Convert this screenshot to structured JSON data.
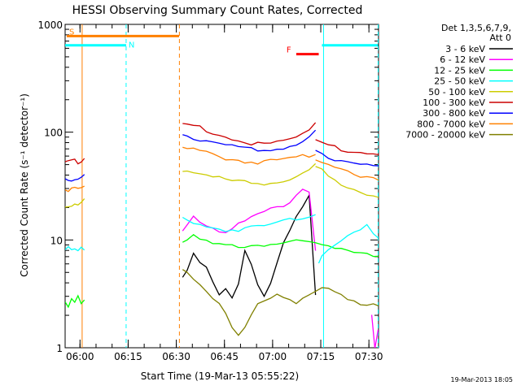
{
  "chart_data": {
    "type": "line",
    "title": "HESSI Observing Summary Count Rates, Corrected",
    "xlabel": "Start Time (19-Mar-13 05:55:22)",
    "ylabel": "Corrected Count Rate (s⁻¹ detector⁻¹)",
    "y_scale": "log",
    "ylim": [
      1,
      1000
    ],
    "xlim": [
      "05:55:22",
      "07:33:00"
    ],
    "x_ticks": [
      "06:00",
      "06:15",
      "06:30",
      "06:45",
      "07:00",
      "07:15",
      "07:30"
    ],
    "y_ticks": [
      "1",
      "10",
      "100",
      "1000"
    ],
    "legend_title": [
      "Det 1,3,5,6,7,9,",
      "Att 0"
    ],
    "legend_position": "right",
    "x_units": "minutes after 05:55:22",
    "series": [
      {
        "name": "3 - 6 keV",
        "color": "#000000",
        "segments": [
          {
            "x": [
              36.6,
              38,
              40,
              42,
              44,
              46,
              48,
              50,
              52,
              54,
              56,
              58,
              60,
              62,
              64,
              66,
              68,
              70,
              72,
              74,
              76,
              78
            ],
            "y": [
              4.5,
              5.0,
              7.5,
              6.0,
              5.5,
              4.0,
              3.0,
              3.5,
              3.0,
              4.0,
              8.0,
              6.0,
              4.0,
              3.0,
              4.0,
              6.0,
              9.0,
              12.0,
              16.0,
              20.0,
              25.0,
              3.0
            ]
          }
        ]
      },
      {
        "name": "6 - 12 keV",
        "color": "#ff00ff",
        "segments": [
          {
            "x": [
              36.6,
              38,
              40,
              42,
              44,
              46,
              48,
              50,
              52,
              54,
              56,
              58,
              60,
              62,
              64,
              66,
              68,
              70,
              72,
              74,
              76,
              78
            ],
            "y": [
              12,
              14,
              17,
              15,
              14,
              13,
              12,
              12,
              13,
              14,
              15,
              16,
              17,
              18,
              19,
              20,
              21,
              23,
              26,
              30,
              28,
              8
            ]
          },
          {
            "x": [
              95.5,
              96.5,
              97.5
            ],
            "y": [
              2,
              1,
              1.5
            ]
          }
        ]
      },
      {
        "name": "12 - 25 keV",
        "color": "#00ff00",
        "segments": [
          {
            "x": [
              0,
              1,
              2,
              3,
              4,
              5,
              6
            ],
            "y": [
              2.8,
              2.5,
              2.8,
              2.6,
              2.9,
              2.5,
              2.7
            ]
          },
          {
            "x": [
              36.6,
              38,
              40,
              42,
              44,
              46,
              48,
              50,
              52,
              54,
              56,
              58,
              60,
              62,
              64,
              66,
              68,
              70,
              72,
              74,
              76,
              78,
              80,
              82,
              84,
              86,
              88,
              90,
              92,
              94,
              96,
              98
            ],
            "y": [
              10,
              10.5,
              11,
              10,
              9.5,
              9,
              9,
              8.8,
              8.8,
              8.7,
              8.8,
              8.9,
              9,
              9.1,
              9.2,
              9.3,
              9.4,
              9.5,
              9.6,
              9.6,
              9.4,
              9.2,
              9.0,
              8.8,
              8.6,
              8.4,
              8.2,
              8.0,
              7.8,
              7.6,
              7.4,
              7.2
            ]
          }
        ]
      },
      {
        "name": "25 - 50 keV",
        "color": "#00ffff",
        "segments": [
          {
            "x": [
              0,
              1,
              2,
              3,
              4,
              5,
              6
            ],
            "y": [
              8,
              8.5,
              8,
              8.3,
              8.1,
              8.6,
              8.2
            ]
          },
          {
            "x": [
              36.6,
              38,
              40,
              42,
              44,
              46,
              48,
              50,
              52,
              54,
              56,
              58,
              60,
              62,
              64,
              66,
              68,
              70,
              72,
              74,
              76,
              78
            ],
            "y": [
              16,
              15,
              14,
              14,
              13.5,
              13,
              12.8,
              12.5,
              12.5,
              12.6,
              12.8,
              13,
              13.2,
              13.5,
              14,
              14.5,
              15,
              15.5,
              16,
              16.5,
              17,
              17.5
            ]
          },
          {
            "x": [
              79,
              80,
              82,
              84,
              86,
              88,
              90,
              92,
              94,
              96,
              98
            ],
            "y": [
              6,
              7,
              8,
              9,
              10,
              11,
              12,
              13,
              14,
              12,
              10
            ]
          }
        ]
      },
      {
        "name": "50 - 100 keV",
        "color": "#cccc00",
        "segments": [
          {
            "x": [
              0,
              1,
              2,
              3,
              4,
              5,
              6
            ],
            "y": [
              21,
              20.5,
              21,
              21.5,
              21,
              22,
              23
            ]
          },
          {
            "x": [
              36.6,
              38,
              40,
              42,
              44,
              46,
              48,
              50,
              52,
              54,
              56,
              58,
              60,
              62,
              64,
              66,
              68,
              70,
              72,
              74,
              76,
              78
            ],
            "y": [
              45,
              44,
              43,
              41,
              40,
              38,
              37,
              36,
              35.5,
              35,
              34.5,
              34,
              34,
              34,
              34.5,
              35,
              36,
              37,
              38,
              40,
              43,
              50
            ]
          },
          {
            "x": [
              78,
              80,
              82,
              84,
              86,
              88,
              90,
              92,
              94,
              96,
              98
            ],
            "y": [
              50,
              46,
              40,
              36,
              32,
              30,
              28,
              27,
              26,
              25,
              24
            ]
          }
        ]
      },
      {
        "name": "100 - 300 keV",
        "color": "#cc0000",
        "segments": [
          {
            "x": [
              0,
              1,
              2,
              3,
              4,
              5,
              6
            ],
            "y": [
              53,
              54,
              55,
              54,
              53,
              55,
              58
            ]
          },
          {
            "x": [
              36.6,
              38,
              40,
              42,
              44,
              46,
              48,
              50,
              52,
              54,
              56,
              58,
              60,
              62,
              64,
              66,
              68,
              70,
              72,
              74,
              76,
              78
            ],
            "y": [
              120,
              118,
              115,
              110,
              105,
              100,
              95,
              90,
              86,
              83,
              80,
              78,
              77,
              77,
              78,
              80,
              82,
              85,
              90,
              98,
              105,
              125
            ]
          },
          {
            "x": [
              78,
              80,
              82,
              84,
              86,
              88,
              90,
              92,
              94,
              96,
              98
            ],
            "y": [
              85,
              80,
              76,
              72,
              70,
              68,
              66,
              65,
              64,
              63,
              62
            ]
          }
        ]
      },
      {
        "name": "300 - 800 keV",
        "color": "#0000ff",
        "segments": [
          {
            "x": [
              0,
              1,
              2,
              3,
              4,
              5,
              6
            ],
            "y": [
              37,
              36,
              37,
              38,
              37,
              38,
              40
            ]
          },
          {
            "x": [
              36.6,
              38,
              40,
              42,
              44,
              46,
              48,
              50,
              52,
              54,
              56,
              58,
              60,
              62,
              64,
              66,
              68,
              70,
              72,
              74,
              76,
              78
            ],
            "y": [
              95,
              93,
              90,
              87,
              84,
              81,
              78,
              76,
              74,
              72,
              70,
              69,
              68,
              68,
              69,
              70,
              72,
              74,
              77,
              82,
              88,
              100
            ]
          },
          {
            "x": [
              78,
              80,
              82,
              84,
              86,
              88,
              90,
              92,
              94,
              96,
              98
            ],
            "y": [
              68,
              64,
              60,
              57,
              55,
              53,
              51,
              50,
              49,
              48,
              47
            ]
          }
        ]
      },
      {
        "name": "800 - 7000 keV",
        "color": "#ff8000",
        "segments": [
          {
            "x": [
              0,
              1,
              2,
              3,
              4,
              5,
              6
            ],
            "y": [
              29,
              28,
              29,
              30,
              29,
              30,
              32
            ]
          },
          {
            "x": [
              36.6,
              38,
              40,
              42,
              44,
              46,
              48,
              50,
              52,
              54,
              56,
              58,
              60,
              62,
              64,
              66,
              68,
              70,
              72,
              74,
              76,
              78
            ],
            "y": [
              72,
              70,
              68,
              66,
              64,
              62,
              60,
              58,
              56,
              55,
              54,
              53,
              53,
              53,
              53.5,
              54,
              55,
              56,
              57,
              59,
              61,
              63
            ]
          },
          {
            "x": [
              78,
              80,
              82,
              84,
              86,
              88,
              90,
              92,
              94,
              96,
              98
            ],
            "y": [
              55,
              52,
              48,
              46,
              44,
              43,
              41,
              40,
              39,
              38,
              37
            ]
          }
        ]
      },
      {
        "name": "7000 - 20000 keV",
        "color": "#808000",
        "segments": [
          {
            "x": [
              36.6,
              38,
              40,
              42,
              44,
              46,
              48,
              50,
              52,
              54,
              56,
              58,
              60,
              62,
              64,
              66,
              68,
              70,
              72,
              74,
              76,
              78,
              80,
              82,
              84,
              86,
              88,
              90,
              92,
              94,
              96,
              98
            ],
            "y": [
              5.5,
              5.0,
              4.5,
              4.0,
              3.5,
              3.0,
              2.5,
              2.0,
              1.5,
              1.3,
              1.5,
              2.0,
              2.5,
              2.7,
              3.0,
              3.2,
              3.0,
              2.8,
              2.6,
              2.9,
              3.1,
              3.3,
              3.5,
              3.4,
              3.2,
              3.0,
              2.8,
              2.6,
              2.4,
              2.5,
              2.6,
              2.5
            ]
          }
        ]
      }
    ],
    "markers": [
      {
        "label": "S",
        "color": "#ff8000",
        "kind": "bar",
        "x0": 0.5,
        "x1": 35.5,
        "y": 780
      },
      {
        "label": "N",
        "color": "#00ffff",
        "kind": "bar",
        "x0": 0.0,
        "x1": 19.0,
        "y": 640
      },
      {
        "label": "",
        "color": "#00ffff",
        "kind": "bar",
        "x0": 80.0,
        "x1": 97.5,
        "y": 640
      },
      {
        "label": "F",
        "color": "#ff0000",
        "kind": "bar",
        "x0": 72.0,
        "x1": 79.0,
        "y": 530
      }
    ],
    "vlines": [
      {
        "x": 5.3,
        "color": "#ff8000",
        "style": "solid"
      },
      {
        "x": 19.0,
        "color": "#00ffff",
        "style": "dashed"
      },
      {
        "x": 35.6,
        "color": "#ff8000",
        "style": "dashed"
      },
      {
        "x": 80.5,
        "color": "#00ffff",
        "style": "solid"
      },
      {
        "x": 97.5,
        "color": "#00ffff",
        "style": "dashed"
      }
    ]
  },
  "footer": "19-Mar-2013 18:05"
}
